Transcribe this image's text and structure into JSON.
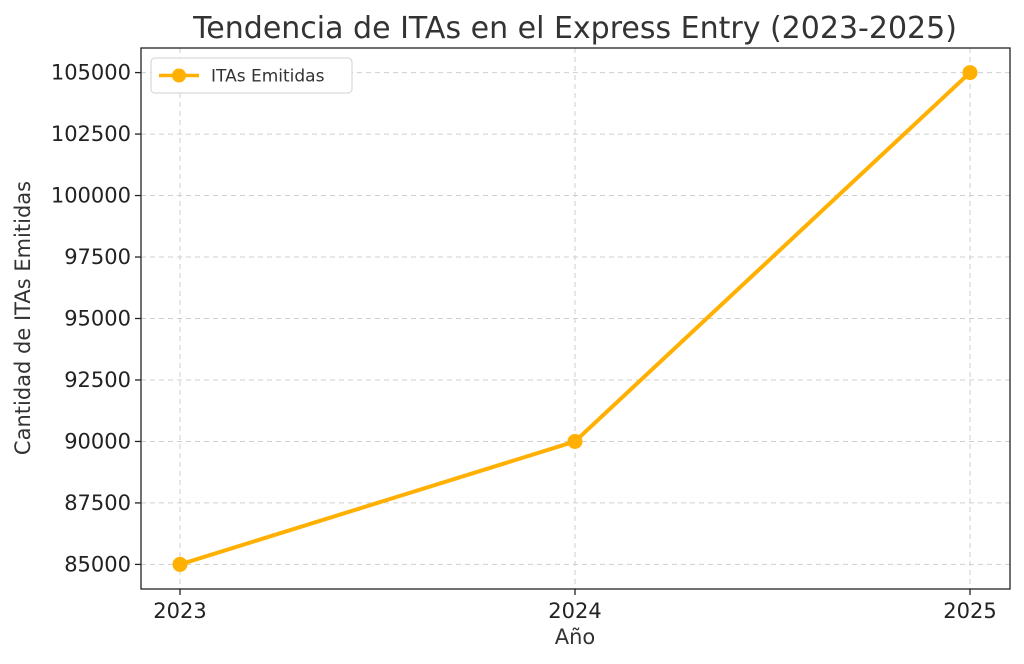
{
  "chart_data": {
    "type": "line",
    "title": "Tendencia de ITAs en el Express Entry (2023-2025)",
    "xlabel": "Año",
    "ylabel": "Cantidad de ITAs Emitidas",
    "x": [
      "2023",
      "2024",
      "2025"
    ],
    "series": [
      {
        "name": "ITAs Emitidas",
        "values": [
          85000,
          90000,
          105000
        ],
        "color": "#FFB000",
        "marker": "circle"
      }
    ],
    "ylim": [
      84000,
      106000
    ],
    "yticks": [
      85000,
      87500,
      90000,
      92500,
      95000,
      97500,
      100000,
      102500,
      105000
    ],
    "grid": true,
    "legend_position": "top-left"
  }
}
